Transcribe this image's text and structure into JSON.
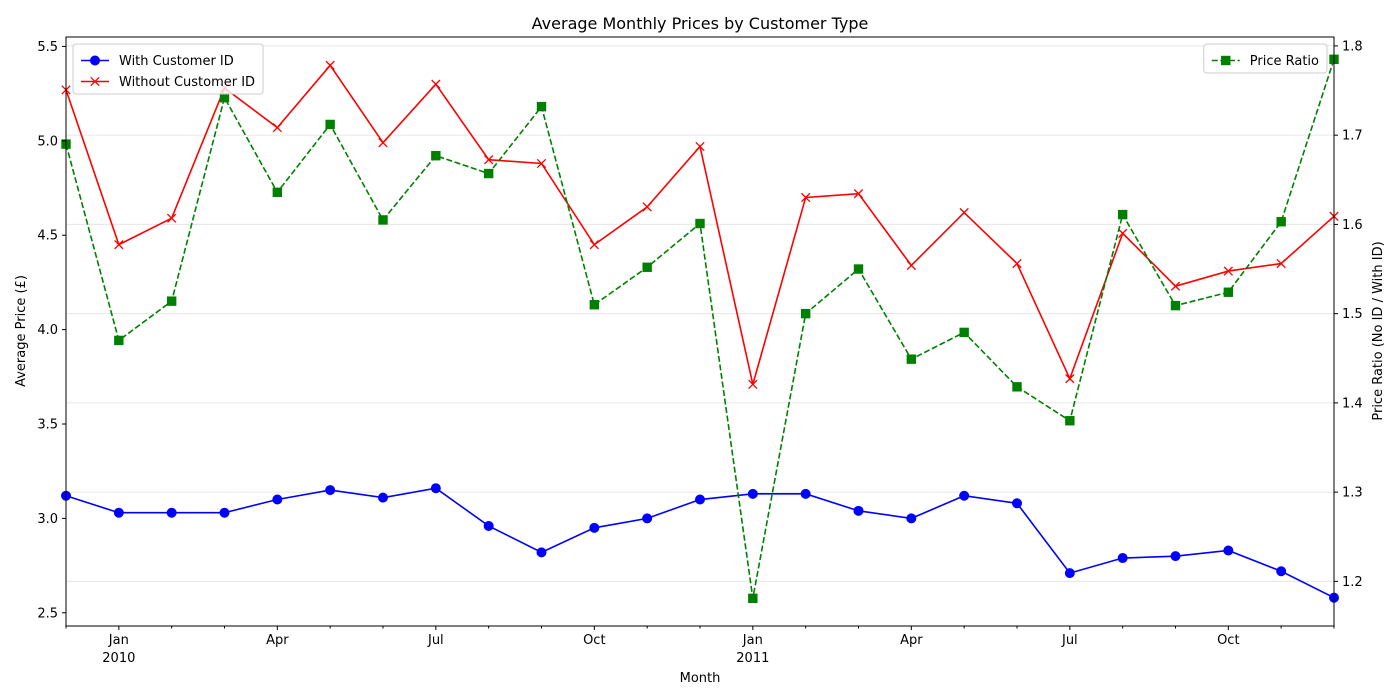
{
  "chart_data": {
    "type": "line",
    "title": "Average Monthly Prices by Customer Type",
    "xlabel": "Month",
    "ylabel_left": "Average Price (£)",
    "ylabel_right": "Price Ratio (No ID / With ID)",
    "ylim_left": [
      2.43,
      5.55
    ],
    "ylim_right": [
      1.15,
      1.81
    ],
    "x": [
      "2009-12",
      "2010-01",
      "2010-02",
      "2010-03",
      "2010-04",
      "2010-05",
      "2010-06",
      "2010-07",
      "2010-08",
      "2010-09",
      "2010-10",
      "2010-11",
      "2010-12",
      "2011-01",
      "2011-02",
      "2011-03",
      "2011-04",
      "2011-05",
      "2011-06",
      "2011-07",
      "2011-08",
      "2011-09",
      "2011-10",
      "2011-11",
      "2011-12"
    ],
    "x_ticks": [
      {
        "index": 1,
        "label": "Jan",
        "sub": "2010"
      },
      {
        "index": 4,
        "label": "Apr",
        "sub": ""
      },
      {
        "index": 7,
        "label": "Jul",
        "sub": ""
      },
      {
        "index": 10,
        "label": "Oct",
        "sub": ""
      },
      {
        "index": 13,
        "label": "Jan",
        "sub": "2011"
      },
      {
        "index": 16,
        "label": "Apr",
        "sub": ""
      },
      {
        "index": 19,
        "label": "Jul",
        "sub": ""
      },
      {
        "index": 22,
        "label": "Oct",
        "sub": ""
      }
    ],
    "y_ticks_left": [
      "2.5",
      "3.0",
      "3.5",
      "4.0",
      "4.5",
      "5.0",
      "5.5"
    ],
    "y_ticks_right": [
      "1.2",
      "1.3",
      "1.4",
      "1.5",
      "1.6",
      "1.7",
      "1.8"
    ],
    "series": [
      {
        "name": "With Customer ID",
        "axis": "left",
        "color": "#0000ff",
        "marker": "circle",
        "style": "solid",
        "values": [
          3.12,
          3.03,
          3.03,
          3.03,
          3.1,
          3.15,
          3.11,
          3.16,
          2.96,
          2.82,
          2.95,
          3.0,
          3.1,
          3.13,
          3.13,
          3.04,
          3.0,
          3.12,
          3.08,
          2.71,
          2.79,
          2.8,
          2.83,
          2.72,
          2.58
        ]
      },
      {
        "name": "Without Customer ID",
        "axis": "left",
        "color": "#ff0000",
        "marker": "x",
        "style": "solid",
        "values": [
          5.27,
          4.45,
          4.59,
          5.28,
          5.07,
          5.4,
          4.99,
          5.3,
          4.9,
          4.88,
          4.45,
          4.65,
          4.97,
          3.71,
          4.7,
          4.72,
          4.34,
          4.62,
          4.35,
          3.74,
          4.51,
          4.23,
          4.31,
          4.35,
          4.6
        ]
      },
      {
        "name": "Price Ratio",
        "axis": "right",
        "color": "#008000",
        "marker": "square",
        "style": "dashed",
        "values": [
          1.69,
          1.47,
          1.514,
          1.742,
          1.636,
          1.712,
          1.605,
          1.677,
          1.657,
          1.732,
          1.51,
          1.552,
          1.601,
          1.181,
          1.5,
          1.55,
          1.449,
          1.479,
          1.418,
          1.38,
          1.611,
          1.509,
          1.524,
          1.603,
          1.785
        ]
      }
    ],
    "legend_left_placement": "upper-left",
    "legend_right_placement": "upper-right",
    "grid": true
  }
}
